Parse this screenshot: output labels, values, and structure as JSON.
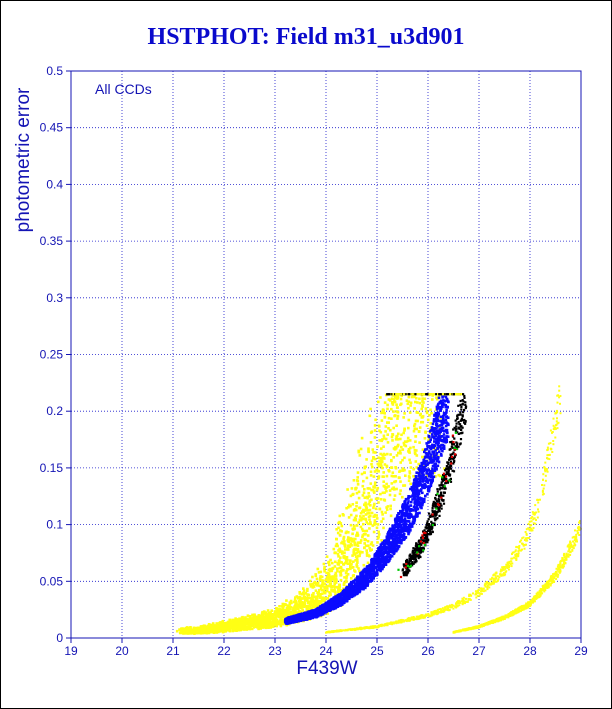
{
  "colors": {
    "title": "#0a0acc",
    "axis": "#1414b4",
    "grid": "#1a1acc",
    "yellow": "#ffff14",
    "blue": "#0a0aff",
    "black": "#000000",
    "green": "#00c800",
    "red": "#e00000"
  },
  "chart_data": {
    "type": "scatter",
    "title": "HSTPHOT: Field m31_u3d901",
    "xlabel": "F439W",
    "ylabel": "photometric error",
    "annotation": "All CCDs",
    "xlim": [
      19,
      29
    ],
    "ylim": [
      0,
      0.5
    ],
    "grid": true,
    "x_ticks": [
      "19",
      "20",
      "21",
      "22",
      "23",
      "24",
      "25",
      "26",
      "27",
      "28",
      "29"
    ],
    "y_ticks": [
      "0",
      "0.05",
      "0.1",
      "0.15",
      "0.2",
      "0.25",
      "0.3",
      "0.35",
      "0.4",
      "0.45",
      "0.5"
    ],
    "series": [
      {
        "color": "yellow",
        "values_desc": "broad upper envelope",
        "envelope": {
          "x_lo_at_cap": 24.1,
          "x_hi_at_cap": 26.0,
          "cap": 0.215,
          "count": 2200
        },
        "points": [
          [
            21.5,
            0.005
          ],
          [
            22.0,
            0.007
          ],
          [
            22.5,
            0.01
          ],
          [
            23.0,
            0.013
          ],
          [
            23.5,
            0.018
          ],
          [
            24.0,
            0.028
          ],
          [
            24.3,
            0.04
          ],
          [
            24.6,
            0.06
          ],
          [
            24.9,
            0.09
          ],
          [
            25.2,
            0.12
          ],
          [
            25.5,
            0.16
          ],
          [
            25.8,
            0.2
          ]
        ]
      },
      {
        "color": "blue",
        "points": [
          [
            23.2,
            0.015
          ],
          [
            23.8,
            0.022
          ],
          [
            24.3,
            0.035
          ],
          [
            24.8,
            0.055
          ],
          [
            25.2,
            0.08
          ],
          [
            25.6,
            0.11
          ],
          [
            25.9,
            0.14
          ],
          [
            26.1,
            0.17
          ],
          [
            26.3,
            0.2
          ],
          [
            26.4,
            0.215
          ]
        ]
      },
      {
        "color": "black",
        "points": [
          [
            25.5,
            0.06
          ],
          [
            25.8,
            0.08
          ],
          [
            26.0,
            0.1
          ],
          [
            26.2,
            0.125
          ],
          [
            26.4,
            0.155
          ],
          [
            26.55,
            0.185
          ],
          [
            26.7,
            0.215
          ]
        ]
      },
      {
        "color": "yellow",
        "values_desc": "second sequence",
        "points": [
          [
            24.0,
            0.005
          ],
          [
            25.0,
            0.01
          ],
          [
            25.5,
            0.015
          ],
          [
            26.0,
            0.02
          ],
          [
            26.5,
            0.028
          ],
          [
            27.0,
            0.04
          ],
          [
            27.5,
            0.06
          ],
          [
            27.9,
            0.085
          ],
          [
            28.2,
            0.12
          ],
          [
            28.4,
            0.17
          ],
          [
            28.6,
            0.215
          ]
        ]
      },
      {
        "color": "yellow",
        "values_desc": "third sequence",
        "points": [
          [
            26.5,
            0.005
          ],
          [
            27.0,
            0.01
          ],
          [
            27.5,
            0.018
          ],
          [
            28.0,
            0.03
          ],
          [
            28.5,
            0.055
          ],
          [
            28.8,
            0.08
          ],
          [
            29.0,
            0.1
          ]
        ]
      }
    ]
  }
}
